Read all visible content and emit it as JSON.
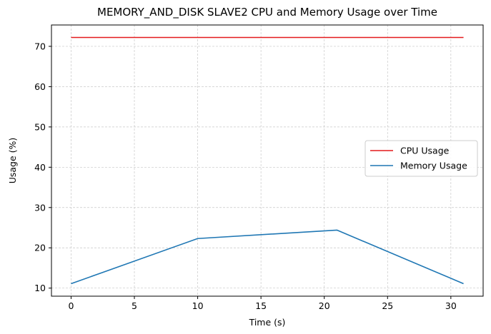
{
  "chart_data": {
    "type": "line",
    "title": "MEMORY_AND_DISK SLAVE2 CPU and Memory Usage over Time",
    "xlabel": "Time (s)",
    "ylabel": "Usage (%)",
    "xlim": [
      -1.55,
      32.55
    ],
    "ylim": [
      8.0,
      75.3
    ],
    "xticks": [
      0,
      5,
      10,
      15,
      20,
      25,
      30
    ],
    "yticks": [
      10,
      20,
      30,
      40,
      50,
      60,
      70
    ],
    "grid": true,
    "legend_position": "center-right",
    "series": [
      {
        "name": "CPU Usage",
        "color": "#e41a1c",
        "x": [
          0,
          31
        ],
        "y": [
          72.2,
          72.2
        ]
      },
      {
        "name": "Memory Usage",
        "color": "#1f77b4",
        "x": [
          0,
          10,
          21,
          31
        ],
        "y": [
          11.1,
          22.3,
          24.4,
          11.1
        ]
      }
    ]
  }
}
